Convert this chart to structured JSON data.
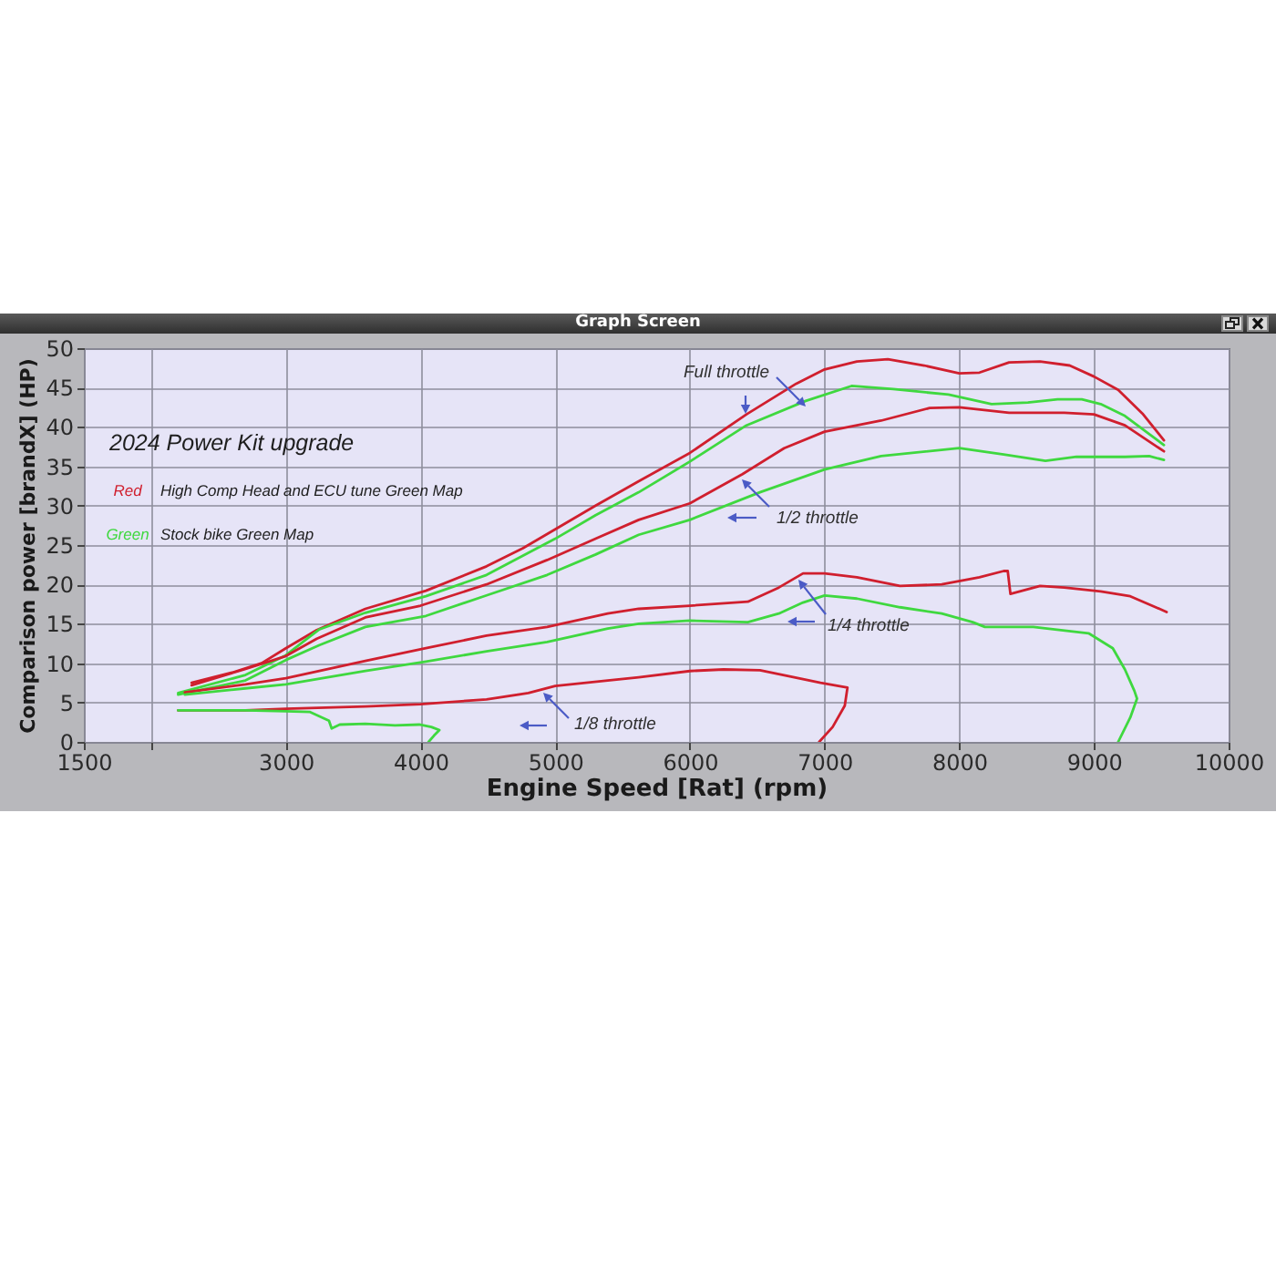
{
  "chart_data": {
    "type": "line",
    "title": "2024 Power Kit upgrade",
    "xlabel": "Engine Speed [Rat] (rpm)",
    "ylabel": "Comparison power [brandX] (HP)",
    "xlim": [
      1500,
      10000
    ],
    "xticks": [
      1500,
      {
        "value": 2000,
        "label": null
      },
      3000,
      4000,
      5000,
      6000,
      7000,
      8000,
      9000,
      10000
    ],
    "ylim": [
      0,
      50
    ],
    "yticks": [
      0,
      5,
      10,
      15,
      20,
      25,
      30,
      35,
      40,
      45,
      50
    ],
    "grid": true,
    "annotations": [
      "Full throttle",
      "1/2 throttle",
      "1/4 throttle",
      "1/8 throttle",
      "Red",
      "High Comp Head and ECU tune Green Map",
      "Green",
      "Stock bike Green Map",
      "Graph Screen"
    ],
    "series": [
      {
        "color": "#d01f2e",
        "x": [
          2300,
          2600,
          2820,
          3000,
          3230,
          3590,
          4040,
          4490,
          4760,
          5000,
          5300,
          5620,
          6000,
          6420,
          6790,
          7000,
          7240,
          7470,
          7740,
          8000,
          8150,
          8370,
          8600,
          8820,
          9000,
          9180,
          9360,
          9520
        ],
        "values": [
          7.5,
          8.8,
          10.0,
          11.9,
          14.2,
          16.9,
          19.2,
          22.3,
          24.6,
          27.0,
          30.0,
          33.1,
          36.7,
          41.6,
          45.5,
          47.3,
          48.3,
          48.6,
          47.8,
          46.8,
          46.9,
          48.2,
          48.3,
          47.8,
          46.4,
          44.7,
          41.7,
          38.3
        ]
      },
      {
        "color": "#3fd83f",
        "x": [
          2200,
          2700,
          3000,
          3150,
          3250,
          3590,
          4040,
          4490,
          5000,
          5300,
          5620,
          6000,
          6420,
          6860,
          7200,
          7510,
          7920,
          8240,
          8510,
          8730,
          8910,
          9050,
          9230,
          9520
        ],
        "values": [
          6.2,
          8.5,
          11.0,
          13.0,
          14.3,
          16.4,
          18.5,
          21.2,
          25.8,
          28.8,
          31.7,
          35.6,
          40.2,
          43.3,
          45.2,
          44.8,
          44.1,
          42.9,
          43.1,
          43.5,
          43.5,
          42.9,
          41.4,
          37.7
        ]
      },
      {
        "color": "#d01f2e",
        "x": [
          2300,
          2690,
          3000,
          3230,
          3590,
          4000,
          4490,
          4940,
          5300,
          5620,
          6000,
          6390,
          6700,
          7000,
          7420,
          7780,
          8000,
          8370,
          8780,
          9000,
          9230,
          9520
        ],
        "values": [
          7.2,
          9.2,
          10.9,
          13.1,
          15.8,
          17.3,
          20.0,
          23.1,
          25.8,
          28.2,
          30.3,
          34.0,
          37.3,
          39.4,
          40.8,
          42.4,
          42.5,
          41.8,
          41.8,
          41.6,
          40.2,
          36.9
        ]
      },
      {
        "color": "#3fd83f",
        "x": [
          2200,
          2700,
          3000,
          3250,
          3590,
          4040,
          4490,
          4940,
          5300,
          5620,
          6000,
          6520,
          7000,
          7420,
          8000,
          8330,
          8640,
          8870,
          9230,
          9410,
          9520
        ],
        "values": [
          6.0,
          7.8,
          10.4,
          12.3,
          14.6,
          16.0,
          18.6,
          21.2,
          23.8,
          26.3,
          28.2,
          31.7,
          34.6,
          36.3,
          37.3,
          36.5,
          35.7,
          36.2,
          36.2,
          36.3,
          35.8
        ]
      },
      {
        "color": "#d01f2e",
        "x": [
          2250,
          2700,
          3000,
          3590,
          4040,
          4490,
          4940,
          5390,
          5620,
          6000,
          6430,
          6660,
          6840,
          7000,
          7240,
          7560,
          7870,
          8150,
          8330,
          8360,
          8380,
          8600,
          8780,
          9050,
          9270,
          9540
        ],
        "values": [
          6.3,
          7.3,
          8.1,
          10.3,
          11.9,
          13.5,
          14.6,
          16.3,
          16.9,
          17.3,
          17.8,
          19.6,
          21.4,
          21.4,
          20.9,
          19.8,
          20.0,
          20.9,
          21.7,
          21.7,
          18.8,
          19.8,
          19.6,
          19.1,
          18.5,
          16.5
        ]
      },
      {
        "color": "#3fd83f",
        "x": [
          2250,
          2700,
          3000,
          3590,
          4040,
          4490,
          4940,
          5390,
          5620,
          6000,
          6430,
          6660,
          6840,
          7000,
          7240,
          7560,
          7870,
          8100,
          8190,
          8550,
          8960,
          9140,
          9230,
          9300,
          9320,
          9270,
          9180
        ],
        "values": [
          6.0,
          6.8,
          7.3,
          9.0,
          10.2,
          11.5,
          12.7,
          14.4,
          15.0,
          15.4,
          15.2,
          16.3,
          17.7,
          18.6,
          18.2,
          17.1,
          16.3,
          15.2,
          14.6,
          14.6,
          13.8,
          11.9,
          9.2,
          6.5,
          5.5,
          3.1,
          0
        ]
      },
      {
        "color": "#d01f2e",
        "x": [
          2200,
          2700,
          3000,
          3590,
          4000,
          4490,
          4800,
          5000,
          5390,
          5620,
          6000,
          6250,
          6520,
          6750,
          6970,
          7170,
          7150,
          7060,
          6960
        ],
        "values": [
          4.0,
          4.0,
          4.2,
          4.5,
          4.8,
          5.4,
          6.2,
          7.1,
          7.8,
          8.2,
          9.0,
          9.2,
          9.1,
          8.3,
          7.5,
          6.9,
          4.6,
          1.9,
          0
        ]
      },
      {
        "color": "#3fd83f",
        "x": [
          2200,
          2700,
          3000,
          3180,
          3320,
          3340,
          3400,
          3590,
          3810,
          3990,
          4080,
          4140,
          4100,
          4060
        ],
        "values": [
          4.0,
          4.0,
          3.9,
          3.8,
          2.7,
          1.7,
          2.2,
          2.3,
          2.1,
          2.2,
          1.9,
          1.5,
          0.8,
          0
        ]
      }
    ]
  }
}
